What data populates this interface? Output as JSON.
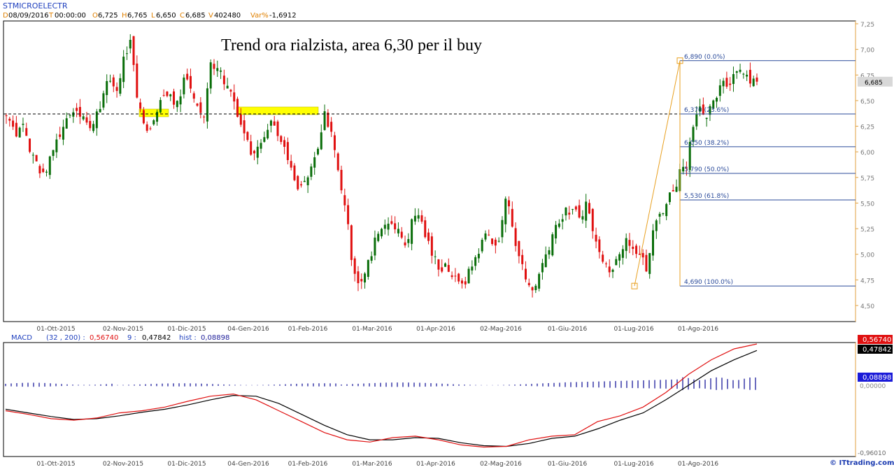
{
  "header": {
    "symbol": "STMICROELECTR",
    "d_label": "D",
    "date": "08/09/2016",
    "t_label": "T",
    "time": "00:00:00",
    "o_label": "O",
    "open": "6,725",
    "h_label": "H",
    "high": "6,765",
    "l_label": "L",
    "low": "6,650",
    "c_label": "C",
    "close": "6,685",
    "v_label": "V",
    "volume": "402480",
    "var_label": "Var%",
    "var": "-1,6912"
  },
  "annotation": "Trend ora rialzista, area 6,30 per il buy",
  "colors": {
    "up": "#0a6e0a",
    "down": "#e01010",
    "fib": "#2a4a9a",
    "fib_box": "#e8a020",
    "highlight": "#ffff00",
    "macd": "#e01010",
    "signal": "#000000",
    "hist": "#1a1a9a"
  },
  "price_axis": {
    "ticks": [
      "7,25",
      "7,00",
      "6,75",
      "6,50",
      "6,25",
      "6,00",
      "5,75",
      "5,50",
      "5,25",
      "5,00",
      "4,75",
      "4,50"
    ],
    "last_label": "6,685"
  },
  "date_axis": [
    "01-Ott-2015",
    "02-Nov-2015",
    "01-Dic-2015",
    "04-Gen-2016",
    "01-Feb-2016",
    "01-Mar-2016",
    "01-Apr-2016",
    "02-Mag-2016",
    "01-Giu-2016",
    "01-Lug-2016",
    "01-Ago-2016"
  ],
  "fib_levels": [
    {
      "value": 6.89,
      "label": "6,890 (0.0%)"
    },
    {
      "value": 6.37,
      "label": "6,370 (23.6%)"
    },
    {
      "value": 6.05,
      "label": "6,050 (38.2%)"
    },
    {
      "value": 5.79,
      "label": "5,790 (50.0%)"
    },
    {
      "value": 5.53,
      "label": "5,530 (61.8%)"
    },
    {
      "value": 4.69,
      "label": "4,690 (100.0%)"
    }
  ],
  "macd_header": {
    "name": "MACD",
    "params": "(32 , 200) :",
    "macd_value": "0,56740",
    "signal_label": "9 :",
    "signal_value": "0,47842",
    "hist_label": "hist :",
    "hist_value": "0,08898"
  },
  "macd_axis": {
    "top_red": "0,56740",
    "top_black": "0,47842",
    "blue": "0,08898",
    "zero": "0,00000",
    "bottom": "-0,96010"
  },
  "watermark": "© ITtrading.com",
  "chart_data": [
    {
      "type": "candlestick",
      "title": "STMICROELECTR",
      "ylim": [
        4.4,
        7.25
      ],
      "x_ticks": [
        "01-Ott-2015",
        "02-Nov-2015",
        "01-Dic-2015",
        "04-Gen-2016",
        "01-Feb-2016",
        "01-Mar-2016",
        "01-Apr-2016",
        "02-Mag-2016",
        "01-Giu-2016",
        "01-Lug-2016",
        "01-Ago-2016"
      ],
      "close_path": [
        6.35,
        6.2,
        6.3,
        6.0,
        5.9,
        5.75,
        5.9,
        6.1,
        6.25,
        6.4,
        6.45,
        6.35,
        6.2,
        6.4,
        6.55,
        6.7,
        6.6,
        6.9,
        7.05,
        6.5,
        6.3,
        6.2,
        6.45,
        6.6,
        6.55,
        6.45,
        6.7,
        6.65,
        6.5,
        6.3,
        6.9,
        6.85,
        6.7,
        6.6,
        6.4,
        6.2,
        6.0,
        6.1,
        6.2,
        6.3,
        6.2,
        6.0,
        5.8,
        5.6,
        5.7,
        5.8,
        6.0,
        6.35,
        6.2,
        5.8,
        5.5,
        5.0,
        4.75,
        4.8,
        5.0,
        5.25,
        5.3,
        5.35,
        5.2,
        5.1,
        5.3,
        5.4,
        5.2,
        5.0,
        4.9,
        4.9,
        4.8,
        4.7,
        4.75,
        4.9,
        5.05,
        5.2,
        5.15,
        5.1,
        5.55,
        5.3,
        5.0,
        4.75,
        4.65,
        4.8,
        5.0,
        5.2,
        5.35,
        5.4,
        5.4,
        5.35,
        5.5,
        5.25,
        5.0,
        4.95,
        4.85,
        5.05,
        5.2,
        5.1,
        5.0,
        4.85,
        5.2,
        5.4,
        5.5,
        5.65,
        5.8,
        5.9,
        6.3,
        6.5,
        6.3,
        6.45,
        6.6,
        6.65,
        6.75,
        6.85,
        6.75,
        6.7
      ],
      "last": {
        "open": 6.725,
        "high": 6.765,
        "low": 6.65,
        "close": 6.685
      },
      "horizontal_level": 6.37
    },
    {
      "type": "line",
      "title": "MACD (32 , 200)",
      "ylim": [
        -0.9601,
        0.5674
      ],
      "series": [
        {
          "name": "MACD",
          "last": 0.5674,
          "values": [
            -0.35,
            -0.4,
            -0.46,
            -0.48,
            -0.45,
            -0.38,
            -0.35,
            -0.3,
            -0.22,
            -0.15,
            -0.12,
            -0.2,
            -0.35,
            -0.5,
            -0.65,
            -0.75,
            -0.78,
            -0.72,
            -0.7,
            -0.75,
            -0.82,
            -0.85,
            -0.84,
            -0.75,
            -0.7,
            -0.68,
            -0.5,
            -0.42,
            -0.3,
            -0.1,
            0.15,
            0.35,
            0.5,
            0.5674
          ]
        },
        {
          "name": "Signal 9",
          "last": 0.47842,
          "values": [
            -0.33,
            -0.38,
            -0.43,
            -0.47,
            -0.46,
            -0.42,
            -0.37,
            -0.33,
            -0.27,
            -0.2,
            -0.14,
            -0.15,
            -0.25,
            -0.4,
            -0.55,
            -0.68,
            -0.75,
            -0.75,
            -0.72,
            -0.73,
            -0.79,
            -0.83,
            -0.84,
            -0.8,
            -0.73,
            -0.7,
            -0.6,
            -0.48,
            -0.38,
            -0.2,
            0.0,
            0.2,
            0.35,
            0.47842
          ]
        },
        {
          "name": "hist",
          "last": 0.08898
        }
      ]
    }
  ]
}
